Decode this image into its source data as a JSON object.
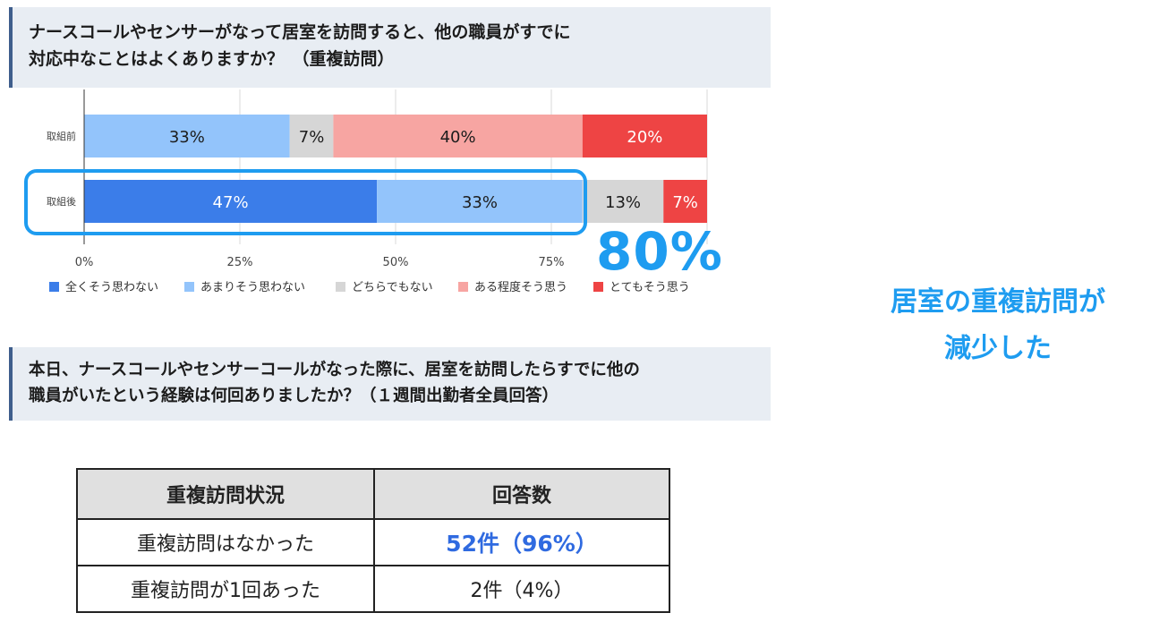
{
  "question1": {
    "line1": "ナースコールやセンサーがなって居室を訪問すると、他の職員がすでに",
    "line2": "対応中なことはよくありますか？　（重複訪問）"
  },
  "chart_data": {
    "type": "bar",
    "orientation": "horizontal",
    "stacked": true,
    "categories": [
      "取組前",
      "取組後"
    ],
    "series": [
      {
        "name": "全くそう思わない",
        "color": "#3b7de9",
        "values": [
          0,
          47
        ]
      },
      {
        "name": "あまりそう思わない",
        "color": "#93c4fb",
        "values": [
          33,
          33
        ]
      },
      {
        "name": "どちらでもない",
        "color": "#d6d6d6",
        "values": [
          7,
          13
        ]
      },
      {
        "name": "ある程度そう思う",
        "color": "#f7a5a2",
        "values": [
          40,
          0
        ]
      },
      {
        "name": "とてもそう思う",
        "color": "#ee4444",
        "values": [
          20,
          7
        ]
      }
    ],
    "data_labels": [
      [
        "",
        "33%",
        "7%",
        "40%",
        "20%"
      ],
      [
        "47%",
        "33%",
        "13%",
        "",
        "7%"
      ]
    ],
    "xlim": [
      0,
      100
    ],
    "xticks": [
      0,
      25,
      50,
      75
    ],
    "xtick_labels": [
      "0%",
      "25%",
      "50%",
      "75%"
    ],
    "grid": true,
    "legend_position": "bottom"
  },
  "callout": {
    "value": "80%",
    "accent_color": "#1e9cf0"
  },
  "conclusion": {
    "line1": "居室の重複訪問が",
    "line2": "減少した"
  },
  "question2": {
    "line1": "本日、ナースコールやセンサーコールがなった際に、居室を訪問したらすでに他の",
    "line2": "職員がいたという経験は何回ありましたか？（１週間出勤者全員回答）"
  },
  "table": {
    "headers": [
      "重複訪問状況",
      "回答数"
    ],
    "rows": [
      {
        "status": "重複訪問はなかった",
        "count": "52件（96%）"
      },
      {
        "status": "重複訪問が1回あった",
        "count": "2件（4%）"
      }
    ]
  }
}
